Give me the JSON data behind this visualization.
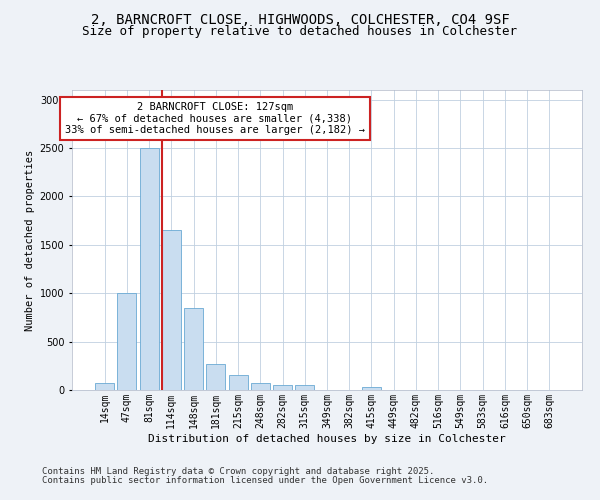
{
  "title1": "2, BARNCROFT CLOSE, HIGHWOODS, COLCHESTER, CO4 9SF",
  "title2": "Size of property relative to detached houses in Colchester",
  "xlabel": "Distribution of detached houses by size in Colchester",
  "ylabel": "Number of detached properties",
  "categories": [
    "14sqm",
    "47sqm",
    "81sqm",
    "114sqm",
    "148sqm",
    "181sqm",
    "215sqm",
    "248sqm",
    "282sqm",
    "315sqm",
    "349sqm",
    "382sqm",
    "415sqm",
    "449sqm",
    "482sqm",
    "516sqm",
    "549sqm",
    "583sqm",
    "616sqm",
    "650sqm",
    "683sqm"
  ],
  "values": [
    70,
    1000,
    2500,
    1650,
    850,
    270,
    155,
    70,
    55,
    55,
    0,
    0,
    30,
    0,
    0,
    0,
    0,
    0,
    0,
    0,
    0
  ],
  "bar_color": "#c9ddf0",
  "bar_edge_color": "#6aaad4",
  "vline_index": 3,
  "vline_color": "#cc2222",
  "annotation_text": "2 BARNCROFT CLOSE: 127sqm\n← 67% of detached houses are smaller (4,338)\n33% of semi-detached houses are larger (2,182) →",
  "annotation_box_color": "white",
  "annotation_box_edge": "#cc2222",
  "ylim": [
    0,
    3100
  ],
  "yticks": [
    0,
    500,
    1000,
    1500,
    2000,
    2500,
    3000
  ],
  "footer1": "Contains HM Land Registry data © Crown copyright and database right 2025.",
  "footer2": "Contains public sector information licensed under the Open Government Licence v3.0.",
  "bg_color": "#eef2f7",
  "plot_bg_color": "#ffffff",
  "title1_fontsize": 10,
  "title2_fontsize": 9,
  "xlabel_fontsize": 8,
  "ylabel_fontsize": 7.5,
  "tick_fontsize": 7,
  "annotation_fontsize": 7.5,
  "footer_fontsize": 6.5
}
